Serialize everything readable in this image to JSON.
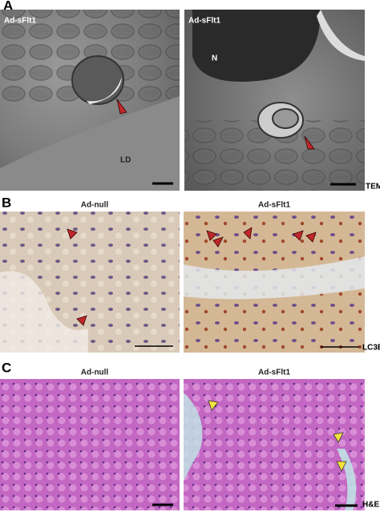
{
  "panel_a": {
    "label": "A",
    "left": {
      "title": "Ad-sFlt1",
      "region_label": "LD"
    },
    "right": {
      "title": "Ad-sFlt1",
      "region_label": "N"
    },
    "method": "TEM"
  },
  "panel_b": {
    "label": "B",
    "left_title": "Ad-null",
    "right_title": "Ad-sFlt1",
    "method": "LC3B"
  },
  "panel_c": {
    "label": "C",
    "left_title": "Ad-null",
    "right_title": "Ad-sFlt1",
    "method": "H&E"
  }
}
